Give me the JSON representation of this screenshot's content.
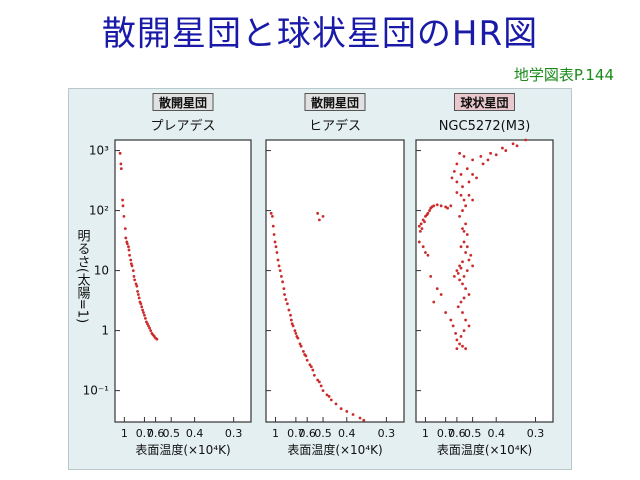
{
  "slide": {
    "title": "散開星団と球状星団のHR図",
    "source": "地学図表P.144"
  },
  "figure": {
    "ylabel": "明るさ(太陽=1)",
    "ytick_labels": [
      "10³",
      "10²",
      "10",
      "1",
      "10⁻¹"
    ],
    "colors": {
      "points": "#cc2b2b",
      "title_box": "#e1e1e1",
      "title_box_highlight": "#e8c8cc",
      "panel_bg": "#e4eff1"
    }
  },
  "chart_data": [
    {
      "type": "scatter",
      "badge": "散開星団",
      "title": "プレアデス",
      "xlabel": "表面温度(×10⁴K)",
      "ylabel": "明るさ(太陽=1)",
      "x_scale": "reciprocal",
      "y_scale": "log",
      "xlim": [
        1.25,
        0.27
      ],
      "ylim": [
        0.03,
        1500
      ],
      "xticks": [
        1,
        0.7,
        0.6,
        0.5,
        0.4,
        0.3
      ],
      "xtick_labels": [
        "1",
        "0.7",
        "0.6",
        "0.5",
        "0.4",
        "0.3"
      ],
      "points": [
        [
          1.1,
          900
        ],
        [
          1.08,
          600
        ],
        [
          1.07,
          500
        ],
        [
          1.04,
          150
        ],
        [
          1.03,
          120
        ],
        [
          1.01,
          80
        ],
        [
          0.98,
          50
        ],
        [
          0.97,
          35
        ],
        [
          0.95,
          30
        ],
        [
          0.94,
          28
        ],
        [
          0.92,
          25
        ],
        [
          0.91,
          22
        ],
        [
          0.9,
          18
        ],
        [
          0.88,
          15
        ],
        [
          0.87,
          13
        ],
        [
          0.86,
          12
        ],
        [
          0.84,
          10
        ],
        [
          0.83,
          8
        ],
        [
          0.82,
          7
        ],
        [
          0.8,
          6
        ],
        [
          0.79,
          5.5
        ],
        [
          0.78,
          4.5
        ],
        [
          0.77,
          4
        ],
        [
          0.76,
          3.5
        ],
        [
          0.75,
          3
        ],
        [
          0.74,
          2.8
        ],
        [
          0.73,
          2.5
        ],
        [
          0.72,
          2.2
        ],
        [
          0.71,
          2
        ],
        [
          0.7,
          1.8
        ],
        [
          0.69,
          1.6
        ],
        [
          0.68,
          1.4
        ],
        [
          0.67,
          1.3
        ],
        [
          0.66,
          1.2
        ],
        [
          0.65,
          1.1
        ],
        [
          0.64,
          1
        ],
        [
          0.63,
          0.9
        ],
        [
          0.62,
          0.85
        ],
        [
          0.61,
          0.8
        ],
        [
          0.6,
          0.75
        ],
        [
          0.59,
          0.72
        ]
      ]
    },
    {
      "type": "scatter",
      "badge": "散開星団",
      "title": "ヒアデス",
      "xlabel": "表面温度(×10⁴K)",
      "ylabel": "明るさ(太陽=1)",
      "x_scale": "reciprocal",
      "y_scale": "log",
      "xlim": [
        1.25,
        0.27
      ],
      "ylim": [
        0.03,
        1500
      ],
      "xticks": [
        1,
        0.7,
        0.6,
        0.5,
        0.4,
        0.3
      ],
      "xtick_labels": [
        "1",
        "0.7",
        "0.6",
        "0.5",
        "0.4",
        "0.3"
      ],
      "points": [
        [
          1.1,
          90
        ],
        [
          1.07,
          80
        ],
        [
          0.53,
          90
        ],
        [
          0.5,
          80
        ],
        [
          0.52,
          70
        ],
        [
          1.05,
          55
        ],
        [
          1.03,
          40
        ],
        [
          1.01,
          30
        ],
        [
          0.99,
          25
        ],
        [
          0.97,
          20
        ],
        [
          0.95,
          15
        ],
        [
          0.93,
          12
        ],
        [
          0.91,
          10
        ],
        [
          0.89,
          8
        ],
        [
          0.87,
          6.5
        ],
        [
          0.85,
          5
        ],
        [
          0.84,
          4
        ],
        [
          0.82,
          3.3
        ],
        [
          0.8,
          2.8
        ],
        [
          0.78,
          2.2
        ],
        [
          0.76,
          1.8
        ],
        [
          0.75,
          1.5
        ],
        [
          0.73,
          1.2
        ],
        [
          0.71,
          1
        ],
        [
          0.7,
          0.9
        ],
        [
          0.68,
          0.75
        ],
        [
          0.66,
          0.6
        ],
        [
          0.65,
          0.55
        ],
        [
          0.63,
          0.45
        ],
        [
          0.61,
          0.38
        ],
        [
          0.6,
          0.32
        ],
        [
          0.58,
          0.27
        ],
        [
          0.56,
          0.22
        ],
        [
          0.55,
          0.18
        ],
        [
          0.53,
          0.15
        ],
        [
          0.51,
          0.12
        ],
        [
          0.5,
          0.1
        ],
        [
          0.48,
          0.085
        ],
        [
          0.46,
          0.07
        ],
        [
          0.44,
          0.06
        ],
        [
          0.42,
          0.05
        ],
        [
          0.4,
          0.045
        ],
        [
          0.38,
          0.04
        ],
        [
          0.36,
          0.035
        ],
        [
          0.35,
          0.032
        ],
        [
          0.74,
          1.3
        ],
        [
          0.69,
          0.8
        ],
        [
          0.62,
          0.4
        ],
        [
          0.57,
          0.25
        ],
        [
          0.47,
          0.08
        ],
        [
          0.52,
          0.14
        ]
      ]
    },
    {
      "type": "scatter",
      "badge": "球状星団",
      "title": "NGC5272(M3)",
      "xlabel": "表面温度(×10⁴K)",
      "ylabel": "明るさ(太陽=1)",
      "x_scale": "reciprocal",
      "y_scale": "log",
      "xlim": [
        1.25,
        0.27
      ],
      "ylim": [
        0.03,
        1500
      ],
      "xticks": [
        1,
        0.7,
        0.6,
        0.5,
        0.4,
        0.3
      ],
      "xtick_labels": [
        "1",
        "0.7",
        "0.6",
        "0.5",
        "0.4",
        "0.3"
      ],
      "points": [
        [
          1.15,
          55
        ],
        [
          1.1,
          60
        ],
        [
          1.05,
          70
        ],
        [
          1.0,
          80
        ],
        [
          0.95,
          90
        ],
        [
          0.9,
          110
        ],
        [
          0.85,
          120
        ],
        [
          0.8,
          125
        ],
        [
          0.75,
          120
        ],
        [
          0.7,
          115
        ],
        [
          0.68,
          110
        ],
        [
          0.65,
          120
        ],
        [
          1.12,
          45
        ],
        [
          1.08,
          50
        ],
        [
          1.02,
          65
        ],
        [
          0.97,
          85
        ],
        [
          0.92,
          100
        ],
        [
          0.88,
          115
        ],
        [
          1.15,
          30
        ],
        [
          1.05,
          25
        ],
        [
          1.0,
          20
        ],
        [
          0.95,
          18
        ],
        [
          0.58,
          900
        ],
        [
          0.55,
          800
        ],
        [
          0.5,
          700
        ],
        [
          0.46,
          800
        ],
        [
          0.42,
          900
        ],
        [
          0.38,
          1100
        ],
        [
          0.35,
          1300
        ],
        [
          0.32,
          1500
        ],
        [
          0.6,
          600
        ],
        [
          0.62,
          450
        ],
        [
          0.64,
          350
        ],
        [
          0.6,
          300
        ],
        [
          0.57,
          400
        ],
        [
          0.53,
          500
        ],
        [
          0.5,
          400
        ],
        [
          0.48,
          350
        ],
        [
          0.45,
          600
        ],
        [
          0.43,
          700
        ],
        [
          0.4,
          850
        ],
        [
          0.37,
          1000
        ],
        [
          0.34,
          1200
        ],
        [
          0.56,
          250
        ],
        [
          0.52,
          300
        ],
        [
          0.55,
          150
        ],
        [
          0.54,
          120
        ],
        [
          0.56,
          100
        ],
        [
          0.58,
          80
        ],
        [
          0.6,
          200
        ],
        [
          0.57,
          180
        ],
        [
          0.52,
          180
        ],
        [
          0.5,
          150
        ],
        [
          0.54,
          60
        ],
        [
          0.56,
          50
        ],
        [
          0.53,
          40
        ],
        [
          0.55,
          30
        ],
        [
          0.57,
          25
        ],
        [
          0.54,
          20
        ],
        [
          0.52,
          15
        ],
        [
          0.5,
          12
        ],
        [
          0.53,
          10
        ],
        [
          0.55,
          8
        ],
        [
          0.58,
          7
        ],
        [
          0.56,
          6
        ],
        [
          0.54,
          5
        ],
        [
          0.52,
          4
        ],
        [
          0.55,
          3.5
        ],
        [
          0.57,
          3
        ],
        [
          0.59,
          2.5
        ],
        [
          0.56,
          2
        ],
        [
          0.54,
          1.5
        ],
        [
          0.52,
          1.2
        ],
        [
          0.55,
          1
        ],
        [
          0.57,
          0.8
        ],
        [
          0.6,
          0.7
        ],
        [
          0.58,
          0.6
        ],
        [
          0.56,
          0.55
        ],
        [
          0.54,
          0.5
        ],
        [
          0.55,
          45
        ],
        [
          0.53,
          25
        ],
        [
          0.51,
          18
        ],
        [
          0.56,
          14
        ],
        [
          0.58,
          12
        ],
        [
          0.6,
          10
        ],
        [
          0.62,
          8
        ],
        [
          0.59,
          9
        ],
        [
          0.57,
          11
        ],
        [
          0.7,
          2
        ],
        [
          0.8,
          5
        ],
        [
          0.9,
          8
        ],
        [
          0.75,
          4
        ],
        [
          0.85,
          3
        ],
        [
          0.65,
          1.5
        ],
        [
          0.63,
          1.2
        ],
        [
          0.61,
          0.9
        ],
        [
          0.6,
          0.5
        ]
      ]
    }
  ]
}
